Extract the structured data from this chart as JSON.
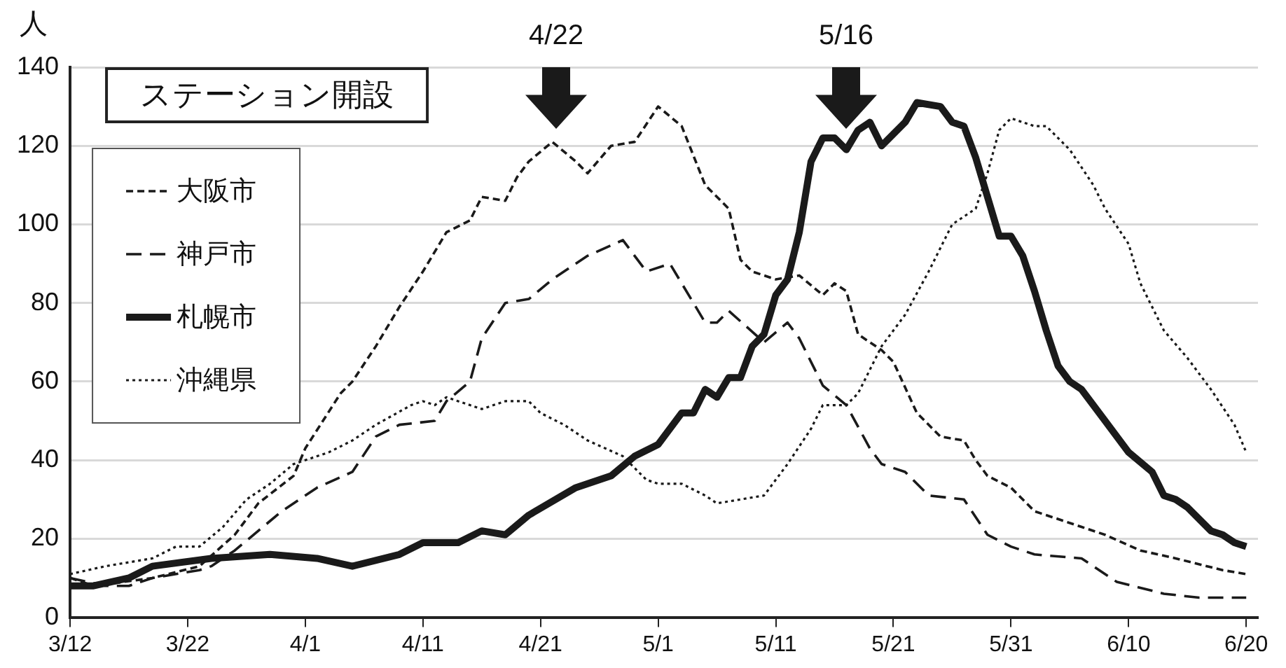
{
  "chart_data": {
    "type": "line",
    "ylabel": "人",
    "xlim": [
      "--03-12",
      "--06-21"
    ],
    "xticks": [
      {
        "value": "--03-12",
        "label": "3/12"
      },
      {
        "value": "--03-22",
        "label": "3/22"
      },
      {
        "value": "--04-01",
        "label": "4/1"
      },
      {
        "value": "--04-11",
        "label": "4/11"
      },
      {
        "value": "--04-21",
        "label": "4/21"
      },
      {
        "value": "--05-01",
        "label": "5/1"
      },
      {
        "value": "--05-11",
        "label": "5/11"
      },
      {
        "value": "--05-21",
        "label": "5/21"
      },
      {
        "value": "--05-31",
        "label": "5/31"
      },
      {
        "value": "--06-10",
        "label": "6/10"
      },
      {
        "value": "--06-20",
        "label": "6/20"
      }
    ],
    "ylim": [
      0,
      140
    ],
    "yticks": [
      0,
      20,
      40,
      60,
      80,
      100,
      120,
      140
    ],
    "grid": "y",
    "legend": "top left",
    "annotations": [
      "ステーション開設",
      "4/22",
      "5/16"
    ],
    "series": [
      {
        "name": "大阪市",
        "color": "#1a1a1a",
        "line_style": "dashed",
        "x": [
          "--03-12",
          "--03-14",
          "--03-19",
          "--03-23",
          "--03-26",
          "--03-28",
          "--03-31",
          "--04-01",
          "--04-04",
          "--04-05",
          "--04-07",
          "--04-09",
          "--04-11",
          "--04-13",
          "--04-15",
          "--04-16",
          "--04-18",
          "--04-19",
          "--04-20",
          "--04-22",
          "--04-24",
          "--04-25",
          "--04-27",
          "--04-29",
          "--05-01",
          "--05-03",
          "--05-05",
          "--05-07",
          "--05-08",
          "--05-09",
          "--05-11",
          "--05-13",
          "--05-15",
          "--05-16",
          "--05-17",
          "--05-18",
          "--05-20",
          "--05-21",
          "--05-23",
          "--05-25",
          "--05-27",
          "--05-28",
          "--05-29",
          "--05-31",
          "--06-02",
          "--06-06",
          "--06-08",
          "--06-11",
          "--06-14",
          "--06-18",
          "--06-20"
        ],
        "values": [
          10,
          8,
          10,
          13,
          21,
          29,
          36,
          43,
          57,
          60,
          69,
          79,
          88,
          98,
          101,
          107,
          106,
          112,
          116,
          121,
          116,
          113,
          120,
          121,
          130,
          125,
          110,
          104,
          91,
          88,
          86,
          87,
          82,
          85,
          83,
          72,
          68,
          65,
          52,
          46,
          45,
          40,
          36,
          33,
          27,
          23,
          21,
          17,
          15,
          12,
          11
        ]
      },
      {
        "name": "神戸市",
        "color": "#1a1a1a",
        "line_style": "dashed",
        "x": [
          "--03-12",
          "--03-15",
          "--03-17",
          "--03-19",
          "--03-23",
          "--03-24",
          "--03-26",
          "--03-28",
          "--03-30",
          "--04-02",
          "--04-05",
          "--04-07",
          "--04-09",
          "--04-12",
          "--04-13",
          "--04-15",
          "--04-16",
          "--04-18",
          "--04-20",
          "--04-22",
          "--04-24",
          "--04-25",
          "--04-28",
          "--04-30",
          "--05-02",
          "--05-05",
          "--05-06",
          "--05-07",
          "--05-10",
          "--05-12",
          "--05-13",
          "--05-15",
          "--05-17",
          "--05-19",
          "--05-20",
          "--05-22",
          "--05-24",
          "--05-27",
          "--05-29",
          "--05-31",
          "--06-02",
          "--06-06",
          "--06-09",
          "--06-13",
          "--06-16",
          "--06-20"
        ],
        "values": [
          10,
          8,
          8,
          10,
          12,
          13,
          17,
          22,
          27,
          33,
          37,
          46,
          49,
          50,
          55,
          60,
          71,
          80,
          81,
          86,
          90,
          92,
          96,
          88,
          90,
          75,
          75,
          78,
          70,
          75,
          71,
          59,
          54,
          43,
          39,
          37,
          31,
          30,
          21,
          18,
          16,
          15,
          9,
          6,
          5,
          5
        ]
      },
      {
        "name": "札幌市",
        "color": "#1a1a1a",
        "line_style": "solid",
        "x": [
          "--03-12",
          "--03-14",
          "--03-17",
          "--03-19",
          "--03-24",
          "--03-29",
          "--04-02",
          "--04-05",
          "--04-09",
          "--04-11",
          "--04-14",
          "--04-16",
          "--04-18",
          "--04-20",
          "--04-24",
          "--04-27",
          "--04-29",
          "--05-01",
          "--05-03",
          "--05-04",
          "--05-05",
          "--05-06",
          "--05-07",
          "--05-08",
          "--05-09",
          "--05-10",
          "--05-11",
          "--05-12",
          "--05-13",
          "--05-14",
          "--05-15",
          "--05-16",
          "--05-17",
          "--05-18",
          "--05-19",
          "--05-20",
          "--05-22",
          "--05-23",
          "--05-25",
          "--05-26",
          "--05-27",
          "--05-28",
          "--05-29",
          "--05-30",
          "--05-31",
          "--06-01",
          "--06-02",
          "--06-03",
          "--06-04",
          "--06-05",
          "--06-06",
          "--06-08",
          "--06-10",
          "--06-12",
          "--06-13",
          "--06-14",
          "--06-15",
          "--06-17",
          "--06-18",
          "--06-19",
          "--06-20"
        ],
        "values": [
          8,
          8,
          10,
          13,
          15,
          16,
          15,
          13,
          16,
          19,
          19,
          22,
          21,
          26,
          33,
          36,
          41,
          44,
          52,
          52,
          58,
          56,
          61,
          61,
          69,
          72,
          82,
          86,
          98,
          116,
          122,
          122,
          119,
          124,
          126,
          120,
          126,
          131,
          130,
          126,
          125,
          117,
          107,
          97,
          97,
          92,
          83,
          73,
          64,
          60,
          58,
          50,
          42,
          37,
          31,
          30,
          28,
          22,
          21,
          19,
          18
        ]
      },
      {
        "name": "沖縄県",
        "color": "#1a1a1a",
        "line_style": "dotted",
        "x": [
          "--03-12",
          "--03-15",
          "--03-19",
          "--03-21",
          "--03-23",
          "--03-25",
          "--03-27",
          "--03-29",
          "--03-31",
          "--04-03",
          "--04-05",
          "--04-07",
          "--04-10",
          "--04-11",
          "--04-12",
          "--04-13",
          "--04-15",
          "--04-16",
          "--04-18",
          "--04-20",
          "--04-21",
          "--04-23",
          "--04-25",
          "--04-28",
          "--04-30",
          "--05-01",
          "--05-03",
          "--05-05",
          "--05-06",
          "--05-08",
          "--05-10",
          "--05-12",
          "--05-14",
          "--05-15",
          "--05-17",
          "--05-18",
          "--05-20",
          "--05-22",
          "--05-24",
          "--05-26",
          "--05-28",
          "--05-29",
          "--05-30",
          "--05-31",
          "--06-02",
          "--06-03",
          "--06-05",
          "--06-07",
          "--06-08",
          "--06-10",
          "--06-11",
          "--06-13",
          "--06-15",
          "--06-17",
          "--06-19",
          "--06-20"
        ],
        "values": [
          11,
          13,
          15,
          18,
          18,
          23,
          30,
          34,
          39,
          42,
          45,
          49,
          54,
          55,
          54,
          56,
          54,
          53,
          55,
          55,
          52,
          49,
          45,
          41,
          35,
          34,
          34,
          31,
          29,
          30,
          31,
          39,
          48,
          54,
          54,
          57,
          69,
          77,
          88,
          100,
          104,
          113,
          124,
          127,
          125,
          125,
          119,
          110,
          104,
          95,
          85,
          73,
          66,
          58,
          49,
          42
        ]
      }
    ]
  }
}
